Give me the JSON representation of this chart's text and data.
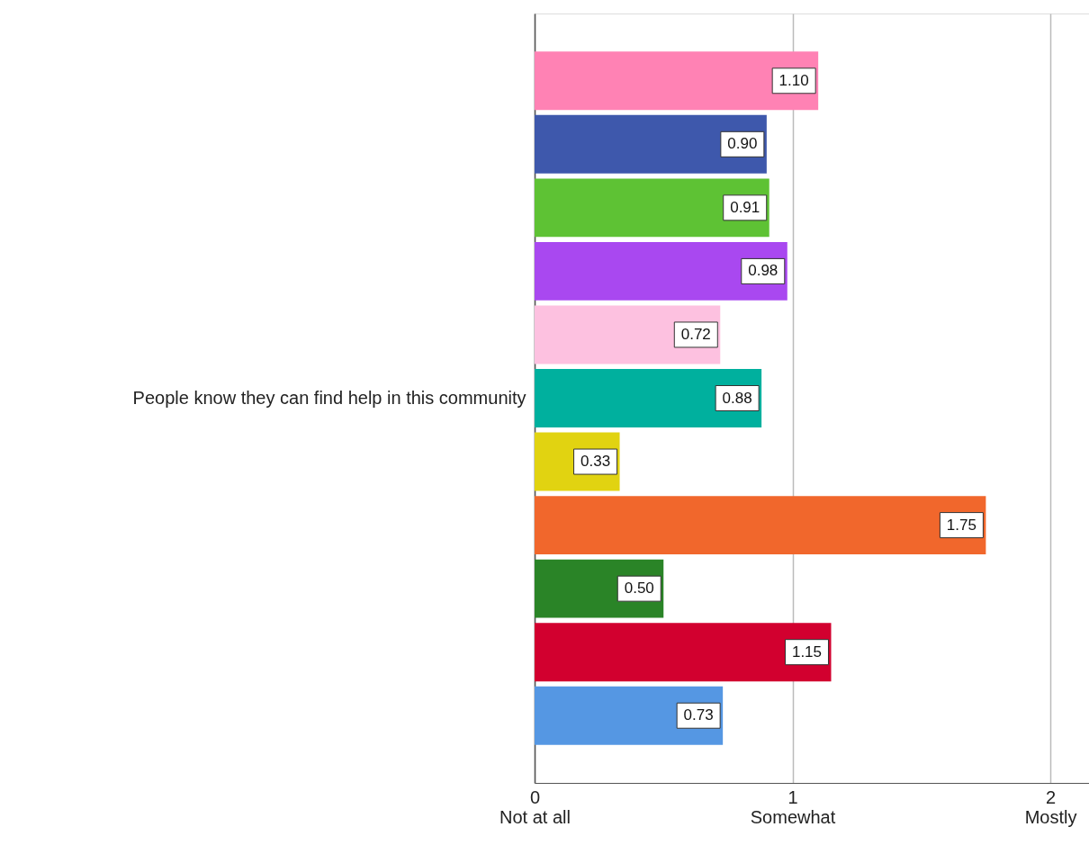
{
  "chart_data": {
    "type": "bar",
    "orientation": "horizontal",
    "ylabel": "People know they can find help in this community",
    "categories": [
      null,
      null,
      null,
      null,
      null,
      null,
      null,
      null,
      null,
      null,
      null
    ],
    "values": [
      1.1,
      0.9,
      0.91,
      0.98,
      0.72,
      0.88,
      0.33,
      1.75,
      0.5,
      1.15,
      0.73
    ],
    "colors": [
      "#ff82b4",
      "#3e58ac",
      "#5ec234",
      "#a948f0",
      "#fdc1e0",
      "#00b09e",
      "#e1d311",
      "#f1672c",
      "#2a8427",
      "#d2002f",
      "#5597e3"
    ],
    "value_labels": [
      "1.10",
      "0.90",
      "0.91",
      "0.98",
      "0.72",
      "0.88",
      "0.33",
      "1.75",
      "0.50",
      "1.15",
      "0.73"
    ],
    "xlim": [
      0,
      2.15
    ],
    "xticks": [
      {
        "value": 0,
        "label": "0\nNot at all"
      },
      {
        "value": 1,
        "label": "1\nSomewhat"
      },
      {
        "value": 2,
        "label": "2\nMostly"
      }
    ],
    "grid": "x"
  }
}
